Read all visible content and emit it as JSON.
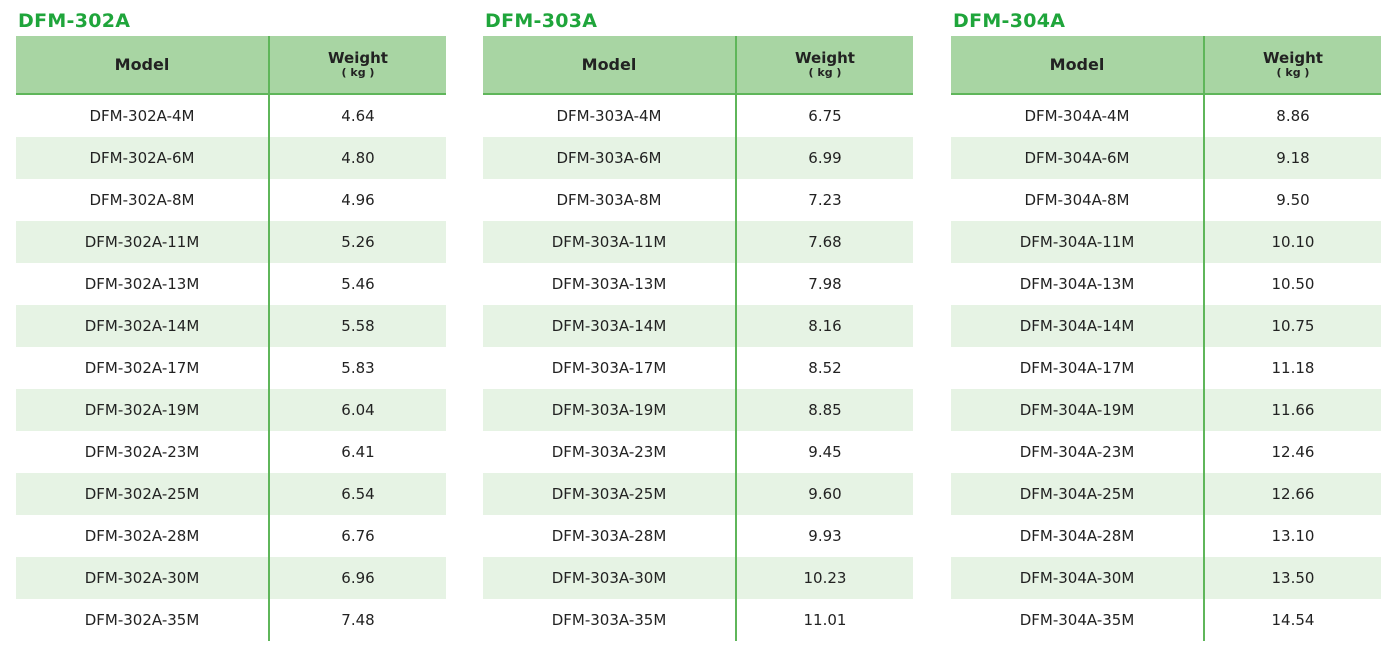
{
  "tables": [
    {
      "title": "DFM-302A",
      "headers": {
        "model": "Model",
        "weight": "Weight",
        "unit": "( kg )"
      },
      "rows": [
        {
          "model": "DFM-302A-4M",
          "weight": "4.64"
        },
        {
          "model": "DFM-302A-6M",
          "weight": "4.80"
        },
        {
          "model": "DFM-302A-8M",
          "weight": "4.96"
        },
        {
          "model": "DFM-302A-11M",
          "weight": "5.26"
        },
        {
          "model": "DFM-302A-13M",
          "weight": "5.46"
        },
        {
          "model": "DFM-302A-14M",
          "weight": "5.58"
        },
        {
          "model": "DFM-302A-17M",
          "weight": "5.83"
        },
        {
          "model": "DFM-302A-19M",
          "weight": "6.04"
        },
        {
          "model": "DFM-302A-23M",
          "weight": "6.41"
        },
        {
          "model": "DFM-302A-25M",
          "weight": "6.54"
        },
        {
          "model": "DFM-302A-28M",
          "weight": "6.76"
        },
        {
          "model": "DFM-302A-30M",
          "weight": "6.96"
        },
        {
          "model": "DFM-302A-35M",
          "weight": "7.48"
        }
      ]
    },
    {
      "title": "DFM-303A",
      "headers": {
        "model": "Model",
        "weight": "Weight",
        "unit": "( kg )"
      },
      "rows": [
        {
          "model": "DFM-303A-4M",
          "weight": "6.75"
        },
        {
          "model": "DFM-303A-6M",
          "weight": "6.99"
        },
        {
          "model": "DFM-303A-8M",
          "weight": "7.23"
        },
        {
          "model": "DFM-303A-11M",
          "weight": "7.68"
        },
        {
          "model": "DFM-303A-13M",
          "weight": "7.98"
        },
        {
          "model": "DFM-303A-14M",
          "weight": "8.16"
        },
        {
          "model": "DFM-303A-17M",
          "weight": "8.52"
        },
        {
          "model": "DFM-303A-19M",
          "weight": "8.85"
        },
        {
          "model": "DFM-303A-23M",
          "weight": "9.45"
        },
        {
          "model": "DFM-303A-25M",
          "weight": "9.60"
        },
        {
          "model": "DFM-303A-28M",
          "weight": "9.93"
        },
        {
          "model": "DFM-303A-30M",
          "weight": "10.23"
        },
        {
          "model": "DFM-303A-35M",
          "weight": "11.01"
        }
      ]
    },
    {
      "title": "DFM-304A",
      "headers": {
        "model": "Model",
        "weight": "Weight",
        "unit": "( kg )"
      },
      "rows": [
        {
          "model": "DFM-304A-4M",
          "weight": "8.86"
        },
        {
          "model": "DFM-304A-6M",
          "weight": "9.18"
        },
        {
          "model": "DFM-304A-8M",
          "weight": "9.50"
        },
        {
          "model": "DFM-304A-11M",
          "weight": "10.10"
        },
        {
          "model": "DFM-304A-13M",
          "weight": "10.50"
        },
        {
          "model": "DFM-304A-14M",
          "weight": "10.75"
        },
        {
          "model": "DFM-304A-17M",
          "weight": "11.18"
        },
        {
          "model": "DFM-304A-19M",
          "weight": "11.66"
        },
        {
          "model": "DFM-304A-23M",
          "weight": "12.46"
        },
        {
          "model": "DFM-304A-25M",
          "weight": "12.66"
        },
        {
          "model": "DFM-304A-28M",
          "weight": "13.10"
        },
        {
          "model": "DFM-304A-30M",
          "weight": "13.50"
        },
        {
          "model": "DFM-304A-35M",
          "weight": "14.54"
        }
      ]
    }
  ],
  "colors": {
    "title": "#1fa53b",
    "header_bg": "#a8d5a3",
    "alt_row_bg": "#e6f3e4",
    "divider": "#5fb65a"
  }
}
